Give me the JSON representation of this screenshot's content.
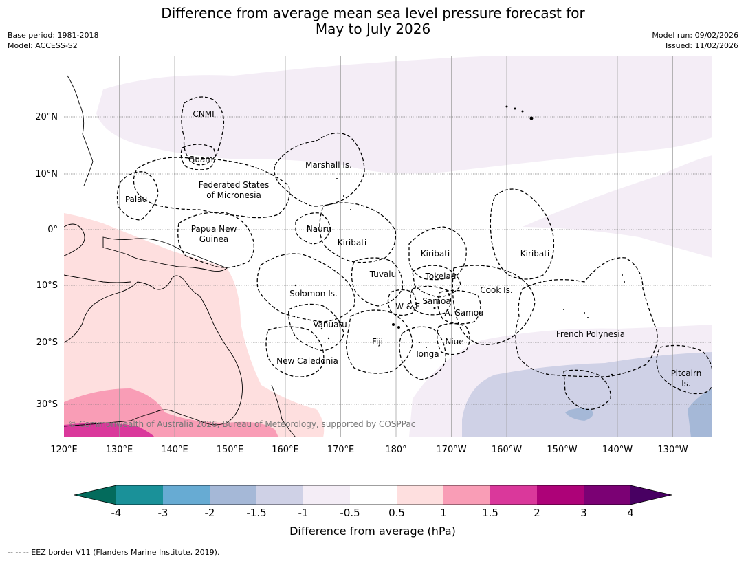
{
  "title": {
    "line1": "Difference from average mean sea level pressure forecast for",
    "line2": "May to July 2026"
  },
  "meta": {
    "base_period": "Base period: 1981-2018",
    "model": "Model: ACCESS-S2",
    "model_run": "Model run: 09/02/2026",
    "issued": "Issued: 11/02/2026"
  },
  "map": {
    "lon_labels": [
      "120°E",
      "130°E",
      "140°E",
      "150°E",
      "160°E",
      "170°E",
      "180°",
      "170°W",
      "160°W",
      "150°W",
      "140°W",
      "130°W"
    ],
    "lat_labels": [
      "20°N",
      "10°N",
      "0°",
      "10°S",
      "20°S",
      "30°S"
    ],
    "places": {
      "cnmi": "CNMI",
      "guam": "Guam",
      "marshall": "Marshall Is.",
      "fsm_1": "Federated States",
      "fsm_2": "of Micronesia",
      "palau": "Palau",
      "png_1": "Papua New",
      "png_2": "Guinea",
      "nauru": "Nauru",
      "kiribati_west": "Kiribati",
      "kiribati_central": "Kiribati",
      "kiribati_east": "Kiribati",
      "tuvalu": "Tuvalu",
      "tokelau": "Tokelau",
      "solomon": "Solomon Is.",
      "samoa": "Samoa",
      "wallis_futuna": "W & F",
      "american_samoa": "A. Samoa",
      "cook": "Cook Is.",
      "vanuatu": "Vanuatu",
      "fiji": "Fiji",
      "niue": "Niue",
      "tonga": "Tonga",
      "new_caledonia": "New Caledonia",
      "french_polynesia": "French Polynesia",
      "pitcairn_1": "Pitcairn",
      "pitcairn_2": "Is."
    },
    "copyright": "© Commonwealth of Australia 2026, Bureau of Meteorology, supported by COSPPac"
  },
  "colorbar": {
    "ticks": [
      "-4",
      "-3",
      "-2",
      "-1.5",
      "-1",
      "-0.5",
      "0.5",
      "1",
      "1.5",
      "2",
      "3",
      "4"
    ],
    "colors": {
      "below_min": "#036b5c",
      "bins": [
        "#1a9199",
        "#67abd3",
        "#a5b8d7",
        "#cfd1e6",
        "#f4edf6",
        "#ffffff",
        "#fedfdf",
        "#f99db6",
        "#da389b",
        "#ad0278",
        "#7b0174"
      ],
      "above_max": "#480062"
    },
    "label": "Difference from average (hPa)"
  },
  "footnote": "--  --  -- EEZ border V11 (Flanders Marine Institute, 2019)."
}
